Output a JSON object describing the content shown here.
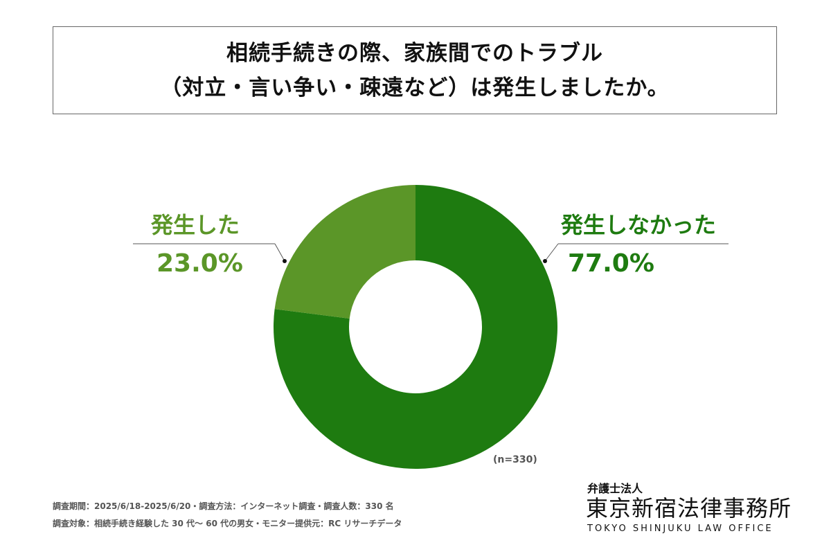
{
  "chart_data": {
    "type": "pie",
    "title": [
      "相続手続きの際、家族間でのトラブル",
      "（対立・言い争い・疎遠など）は発生しましたか。"
    ],
    "donut": true,
    "slices": [
      {
        "label": "発生しなかった",
        "value": 77.0,
        "display": "77.0%",
        "color": "#1e7b10"
      },
      {
        "label": "発生した",
        "value": 23.0,
        "display": "23.0%",
        "color": "#5b9628"
      }
    ],
    "sample_note": "(n=330)"
  },
  "footer": {
    "line1": "調査期間：2025/6/18-2025/6/20・調査方法：インターネット調査・調査人数：330 名",
    "line2": "調査対象：相続手続き経験した 30 代～ 60 代の男女・モニター提供元：RC リサーチデータ"
  },
  "logo": {
    "small": "弁護士法人",
    "main": "東京新宿法律事務所",
    "english": "TOKYO SHINJUKU LAW OFFICE"
  }
}
